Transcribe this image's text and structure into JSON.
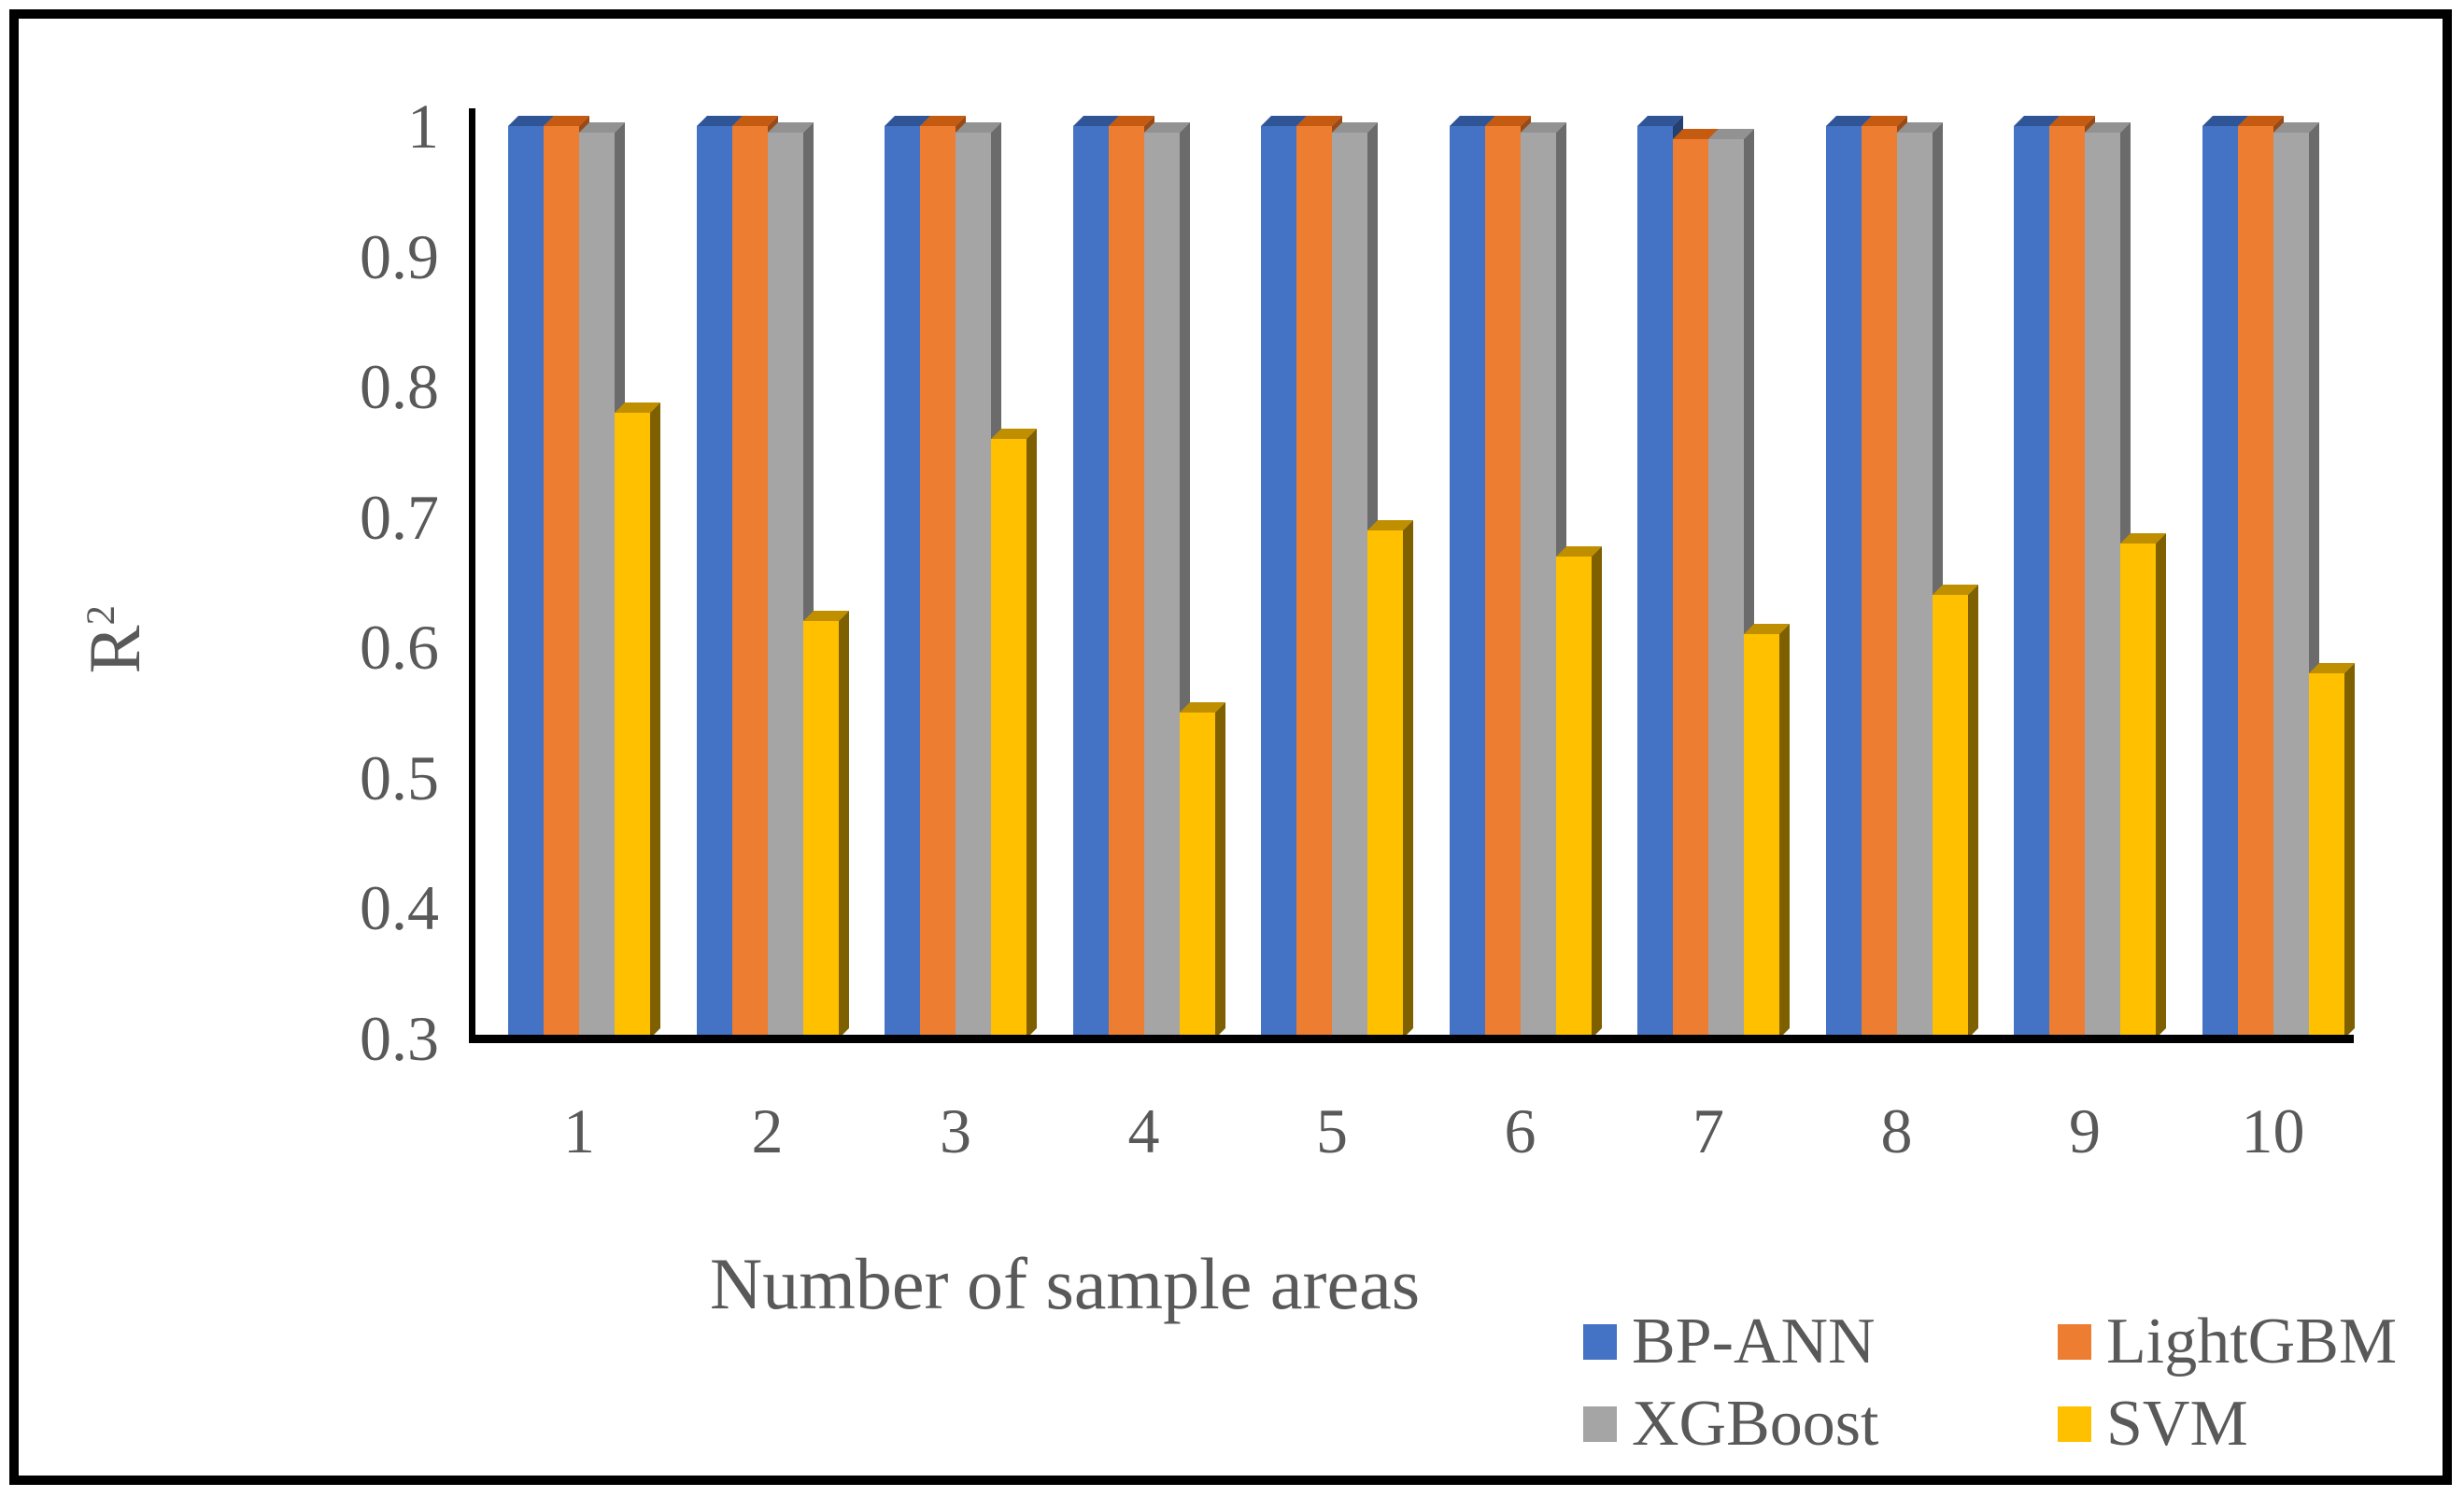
{
  "chart_data": {
    "type": "bar",
    "title": "",
    "xlabel": "Number of sample areas",
    "ylabel_base": "R",
    "ylabel_exp": "2",
    "categories": [
      "1",
      "2",
      "3",
      "4",
      "5",
      "6",
      "7",
      "8",
      "9",
      "10"
    ],
    "series": [
      {
        "name": "BP-ANN",
        "color": "#4472C4",
        "color_top": "#2F5597",
        "color_side": "#24406F",
        "values": [
          1.0,
          1.0,
          1.0,
          1.0,
          1.0,
          1.0,
          1.0,
          1.0,
          1.0,
          1.0
        ]
      },
      {
        "name": "LightGBM",
        "color": "#ED7D31",
        "color_top": "#C55A11",
        "color_side": "#9A4A17",
        "values": [
          1.0,
          1.0,
          1.0,
          1.0,
          1.0,
          1.0,
          0.99,
          1.0,
          1.0,
          1.0
        ]
      },
      {
        "name": "XGBoost",
        "color": "#A5A5A5",
        "color_top": "#929292",
        "color_side": "#6B6B6B",
        "values": [
          0.995,
          0.995,
          0.995,
          0.995,
          0.995,
          0.995,
          0.99,
          0.995,
          0.995,
          0.995
        ]
      },
      {
        "name": "SVM",
        "color": "#FFC000",
        "color_top": "#BF8F00",
        "color_side": "#7F6000",
        "values": [
          0.78,
          0.62,
          0.76,
          0.55,
          0.69,
          0.67,
          0.61,
          0.64,
          0.68,
          0.58
        ]
      }
    ],
    "ytick_labels": [
      "1",
      "0.9",
      "0.8",
      "0.7",
      "0.6",
      "0.5",
      "0.4",
      "0.3"
    ],
    "yticks": [
      1.0,
      0.9,
      0.8,
      0.7,
      0.6,
      0.5,
      0.4,
      0.3
    ],
    "ylim": [
      0.3,
      1.0
    ],
    "grid": false,
    "legend_position": "bottom-right",
    "text_color": "#595959",
    "axis_color": "#000000",
    "frame_color": "#000000",
    "background_color": "#FFFFFF"
  },
  "legend": {
    "items": [
      {
        "label": "BP-ANN",
        "color": "#4472C4"
      },
      {
        "label": "LightGBM",
        "color": "#ED7D31"
      },
      {
        "label": "XGBoost",
        "color": "#A5A5A5"
      },
      {
        "label": "SVM",
        "color": "#FFC000"
      }
    ]
  }
}
